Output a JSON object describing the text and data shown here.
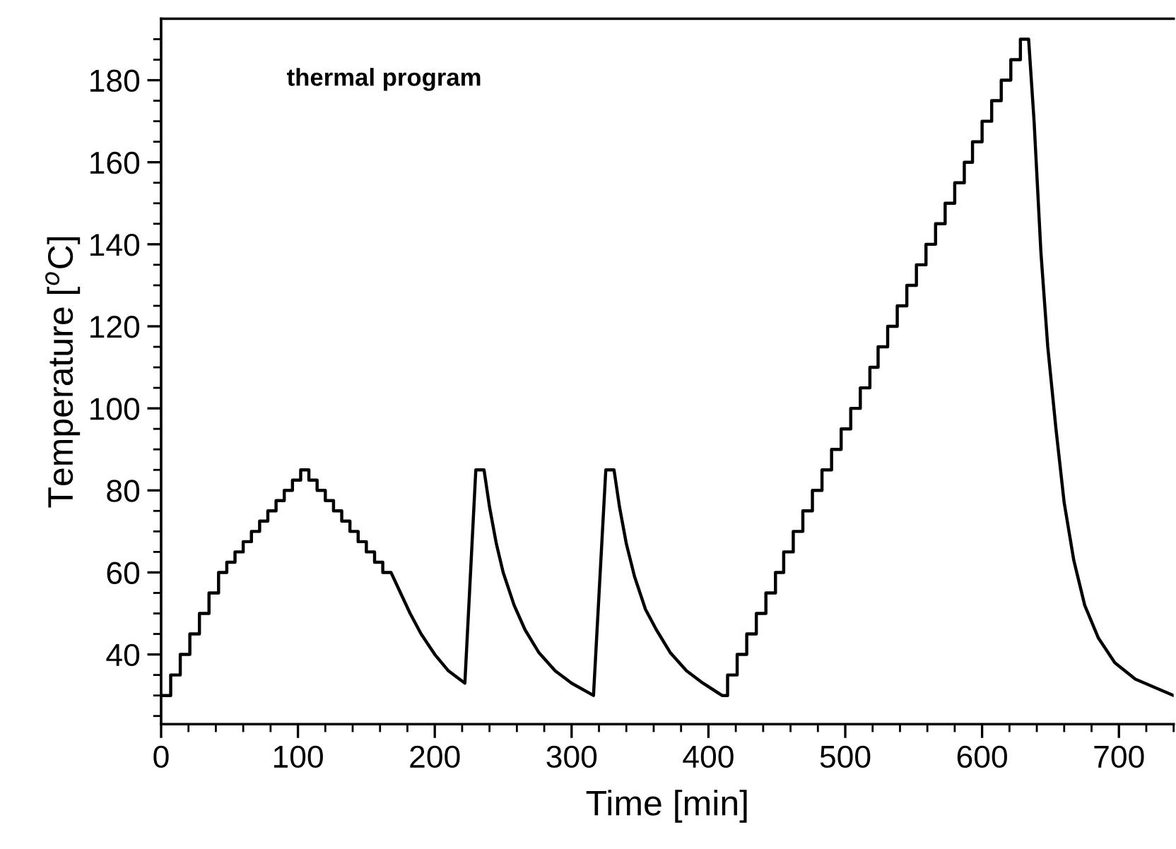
{
  "chart_data": {
    "type": "line",
    "xlabel": "Time [min]",
    "ylabel": "Temperature [$^{o}$C]",
    "annotations": [
      "thermal program"
    ],
    "xlim": [
      0,
      740
    ],
    "ylim": [
      23,
      195
    ],
    "xticks": [
      0,
      {
        "value": 20,
        "label": null
      },
      {
        "value": 40,
        "label": null
      },
      {
        "value": 60,
        "label": null
      },
      {
        "value": 80,
        "label": null
      },
      100,
      {
        "value": 120,
        "label": null
      },
      {
        "value": 140,
        "label": null
      },
      {
        "value": 160,
        "label": null
      },
      {
        "value": 180,
        "label": null
      },
      200,
      {
        "value": 220,
        "label": null
      },
      {
        "value": 240,
        "label": null
      },
      {
        "value": 260,
        "label": null
      },
      {
        "value": 280,
        "label": null
      },
      300,
      {
        "value": 320,
        "label": null
      },
      {
        "value": 340,
        "label": null
      },
      {
        "value": 360,
        "label": null
      },
      {
        "value": 380,
        "label": null
      },
      400,
      {
        "value": 420,
        "label": null
      },
      {
        "value": 440,
        "label": null
      },
      {
        "value": 460,
        "label": null
      },
      {
        "value": 480,
        "label": null
      },
      500,
      {
        "value": 520,
        "label": null
      },
      {
        "value": 540,
        "label": null
      },
      {
        "value": 560,
        "label": null
      },
      {
        "value": 580,
        "label": null
      },
      600,
      {
        "value": 620,
        "label": null
      },
      {
        "value": 640,
        "label": null
      },
      {
        "value": 660,
        "label": null
      },
      {
        "value": 680,
        "label": null
      },
      700,
      {
        "value": 720,
        "label": null
      },
      {
        "value": 740,
        "label": null
      }
    ],
    "yticks": [
      {
        "value": 25,
        "label": null
      },
      {
        "value": 30,
        "label": null
      },
      {
        "value": 35,
        "label": null
      },
      40,
      {
        "value": 45,
        "label": null
      },
      {
        "value": 50,
        "label": null
      },
      {
        "value": 55,
        "label": null
      },
      60,
      {
        "value": 65,
        "label": null
      },
      {
        "value": 70,
        "label": null
      },
      {
        "value": 75,
        "label": null
      },
      80,
      {
        "value": 85,
        "label": null
      },
      {
        "value": 90,
        "label": null
      },
      {
        "value": 95,
        "label": null
      },
      100,
      {
        "value": 105,
        "label": null
      },
      {
        "value": 110,
        "label": null
      },
      {
        "value": 115,
        "label": null
      },
      120,
      {
        "value": 125,
        "label": null
      },
      {
        "value": 130,
        "label": null
      },
      {
        "value": 135,
        "label": null
      },
      140,
      {
        "value": 145,
        "label": null
      },
      {
        "value": 150,
        "label": null
      },
      {
        "value": 155,
        "label": null
      },
      160,
      {
        "value": 165,
        "label": null
      },
      {
        "value": 170,
        "label": null
      },
      {
        "value": 175,
        "label": null
      },
      180,
      {
        "value": 185,
        "label": null
      },
      {
        "value": 190,
        "label": null
      }
    ],
    "marker": "none",
    "line_style": "solid",
    "series": [
      {
        "color": "#000000",
        "x": [
          0,
          7,
          7,
          14,
          14,
          21,
          21,
          28,
          28,
          35,
          35,
          42,
          42,
          48,
          48,
          54,
          54,
          60,
          60,
          66,
          66,
          72,
          72,
          78,
          78,
          84,
          84,
          90,
          90,
          96,
          96,
          102,
          102,
          108,
          108,
          114,
          114,
          120,
          120,
          126,
          126,
          132,
          132,
          138,
          138,
          144,
          144,
          150,
          150,
          156,
          156,
          162,
          162,
          168,
          175,
          182,
          190,
          200,
          210,
          222,
          230,
          236,
          240,
          245,
          250,
          258,
          266,
          276,
          288,
          300,
          316,
          325,
          331,
          335,
          340,
          346,
          354,
          362,
          372,
          384,
          396,
          410,
          414,
          414,
          421,
          421,
          428,
          428,
          435,
          435,
          442,
          442,
          449,
          449,
          455,
          455,
          462,
          462,
          469,
          469,
          476,
          476,
          483,
          483,
          490,
          490,
          497,
          497,
          504,
          504,
          511,
          511,
          518,
          518,
          524,
          524,
          531,
          531,
          538,
          538,
          545,
          545,
          552,
          552,
          559,
          559,
          566,
          566,
          573,
          573,
          580,
          580,
          587,
          587,
          593,
          593,
          600,
          600,
          607,
          607,
          614,
          614,
          621,
          621,
          628,
          628,
          634,
          638,
          643,
          648,
          654,
          660,
          667,
          675,
          685,
          697,
          712,
          740
        ],
        "values": [
          30,
          30,
          35,
          35,
          40,
          40,
          45,
          45,
          50,
          50,
          55,
          55,
          60,
          60,
          62.5,
          62.5,
          65,
          65,
          67.5,
          67.5,
          70,
          70,
          72.5,
          72.5,
          75,
          75,
          77.5,
          77.5,
          80,
          80,
          82.5,
          82.5,
          85,
          85,
          82.5,
          82.5,
          80,
          80,
          77.5,
          77.5,
          75,
          75,
          72.5,
          72.5,
          70,
          70,
          67.5,
          67.5,
          65,
          65,
          62.5,
          62.5,
          60,
          60,
          55,
          50,
          45,
          40,
          36,
          33,
          85,
          85,
          76,
          67,
          60,
          52,
          46,
          40.5,
          36,
          33,
          30,
          85,
          85,
          76,
          67,
          59,
          51,
          46,
          40.5,
          36,
          33,
          30,
          30,
          35,
          35,
          40,
          40,
          45,
          45,
          50,
          50,
          55,
          55,
          60,
          60,
          65,
          65,
          70,
          70,
          75,
          75,
          80,
          80,
          85,
          85,
          90,
          90,
          95,
          95,
          100,
          100,
          105,
          105,
          110,
          110,
          115,
          115,
          120,
          120,
          125,
          125,
          130,
          130,
          135,
          135,
          140,
          140,
          145,
          145,
          150,
          150,
          155,
          155,
          160,
          160,
          165,
          165,
          170,
          170,
          175,
          175,
          180,
          180,
          185,
          185,
          190,
          190,
          170,
          138,
          115,
          95,
          77,
          63,
          52,
          44,
          38,
          34,
          30
        ]
      }
    ]
  }
}
